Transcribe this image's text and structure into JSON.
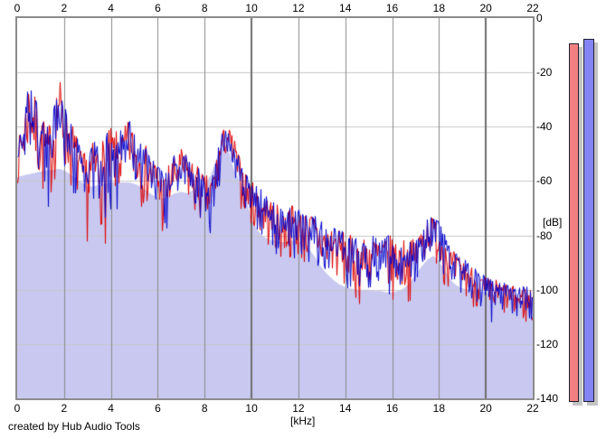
{
  "app": {
    "credit": "created by Hub Audio Tools"
  },
  "colors": {
    "background": "#ffffff",
    "plot_frame": "#8c8c8c",
    "grid_vertical_minor": "#8a8a8a",
    "grid_vertical_major": "#6e6e6e",
    "grid_horizontal": "#c9c9c9",
    "average_fill": "#c8c8f0",
    "series_red": "#dd0000",
    "series_blue": "#0000cc",
    "meter_red": "#f28080",
    "meter_blue": "#8484f2",
    "meter_shadow": "#c4c4c4",
    "meter_border": "#1e1e2e",
    "text": "#000000"
  },
  "chart_data": {
    "type": "line",
    "title": "",
    "xlabel": "[kHz]",
    "ylabel": "[dB]",
    "xlim": [
      0,
      22
    ],
    "ylim": [
      -140,
      0
    ],
    "x_ticks": [
      0,
      2,
      4,
      6,
      8,
      10,
      12,
      14,
      16,
      18,
      20,
      22
    ],
    "x_major_gridlines": [
      10,
      20
    ],
    "y_ticks": [
      0,
      -20,
      -40,
      -60,
      -80,
      -100,
      -120,
      -140
    ],
    "grid": true,
    "legend": "none",
    "envelope": {
      "freq_start_khz": 0,
      "freq_step_khz": 0.25,
      "peak_db": [
        -46,
        -36,
        -21,
        -29,
        -33,
        -40,
        -35,
        -19,
        -33,
        -36,
        -42,
        -50,
        -48,
        -45,
        -45,
        -43,
        -40,
        -42,
        -41,
        -37,
        -42,
        -45,
        -47,
        -50,
        -53,
        -57,
        -52,
        -50,
        -48,
        -50,
        -52,
        -55,
        -58,
        -57,
        -50,
        -41,
        -40,
        -44,
        -52,
        -57,
        -60,
        -62,
        -64,
        -66,
        -68,
        -70,
        -70,
        -68,
        -70,
        -72,
        -71,
        -73,
        -75,
        -76,
        -76,
        -78,
        -79,
        -80,
        -81,
        -81,
        -80,
        -80,
        -80,
        -80,
        -80,
        -81,
        -81,
        -82,
        -80,
        -76,
        -73,
        -73,
        -75,
        -80,
        -85,
        -87,
        -88,
        -90,
        -92,
        -94,
        -95,
        -96,
        -96,
        -97,
        -98,
        -99,
        -99,
        -98,
        -98
      ],
      "dip_db": [
        -62,
        -60,
        -55,
        -64,
        -70,
        -72,
        -68,
        -52,
        -62,
        -66,
        -70,
        -76,
        -85,
        -74,
        -76,
        -87,
        -70,
        -72,
        -68,
        -62,
        -67,
        -70,
        -72,
        -74,
        -76,
        -89,
        -76,
        -72,
        -68,
        -72,
        -76,
        -78,
        -80,
        -85,
        -70,
        -54,
        -52,
        -62,
        -70,
        -76,
        -80,
        -83,
        -85,
        -87,
        -90,
        -93,
        -92,
        -90,
        -92,
        -94,
        -93,
        -95,
        -98,
        -99,
        -99,
        -101,
        -103,
        -105,
        -108,
        -104,
        -103,
        -104,
        -105,
        -106,
        -108,
        -105,
        -104,
        -105,
        -100,
        -95,
        -90,
        -90,
        -94,
        -100,
        -104,
        -105,
        -105,
        -106,
        -108,
        -110,
        -112,
        -114,
        -111,
        -112,
        -112,
        -113,
        -114,
        -116,
        -118
      ],
      "average_db": [
        -58.5,
        -58,
        -57.5,
        -57,
        -56.5,
        -56,
        -56,
        -55.5,
        -56,
        -57.5,
        -59,
        -60.5,
        -62,
        -62,
        -61.5,
        -61,
        -60.5,
        -60.5,
        -60.5,
        -60.5,
        -61,
        -62,
        -63.5,
        -65,
        -66,
        -66.5,
        -65.5,
        -64.5,
        -64,
        -64.5,
        -63.5,
        -62.5,
        -61,
        -58,
        -52,
        -46,
        -48,
        -56,
        -60,
        -66,
        -74,
        -78,
        -80.5,
        -81.5,
        -82,
        -82.5,
        -82.5,
        -82,
        -82,
        -83.5,
        -85.5,
        -88.5,
        -92,
        -94.5,
        -96.5,
        -98,
        -99,
        -99.5,
        -100,
        -100,
        -100,
        -100.5,
        -100.5,
        -101,
        -101,
        -100.5,
        -99.5,
        -97.5,
        -94.5,
        -91.5,
        -89,
        -87.5,
        -89.5,
        -93,
        -96.5,
        -98.5,
        -99.5,
        -100,
        -100,
        -100.5,
        -101,
        -101.5,
        -102,
        -102.5,
        -103,
        -103.5,
        -104,
        -104.5,
        -105
      ],
      "noise_seed": 7
    },
    "series": [
      {
        "name": "spectrum-red",
        "color_key": "series_red",
        "bias": 0.58
      },
      {
        "name": "spectrum-blue",
        "color_key": "series_blue",
        "bias": 0.46
      }
    ],
    "meters": [
      {
        "name": "level-meter-red",
        "color_key": "meter_red",
        "value_db": -9.3
      },
      {
        "name": "level-meter-blue",
        "color_key": "meter_blue",
        "value_db": -7.6
      }
    ]
  }
}
